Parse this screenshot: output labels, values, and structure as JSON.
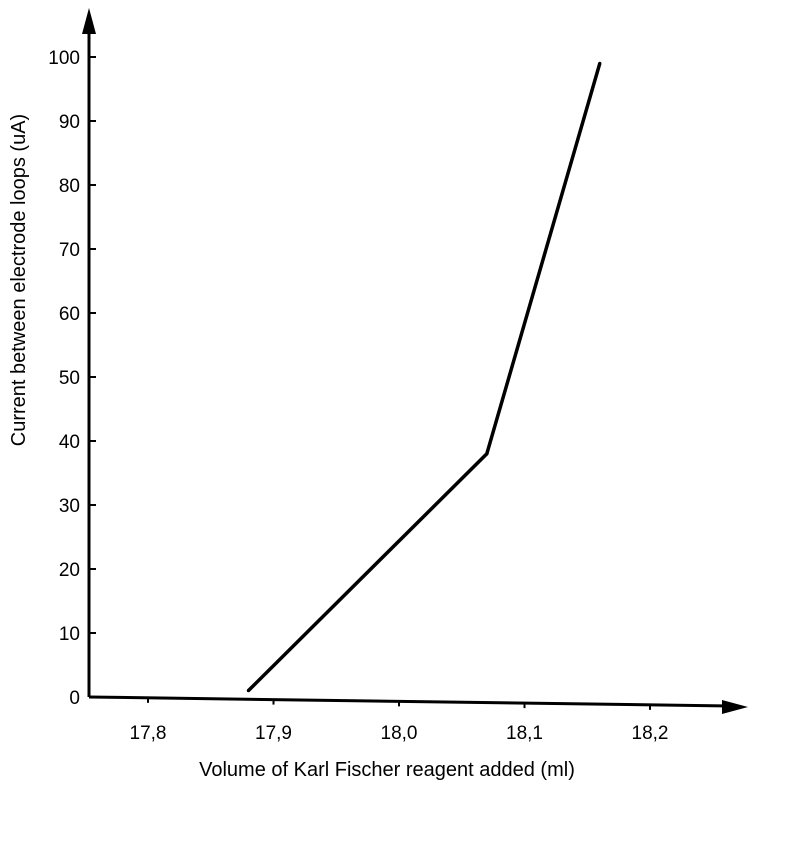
{
  "chart_data": {
    "type": "line",
    "title": "",
    "xlabel": "Volume of Karl Fischer reagent added  (ml)",
    "ylabel": "Current between electrode loops (uA)",
    "xlim": [
      17.76,
      18.29
    ],
    "ylim": [
      0,
      106
    ],
    "x_ticks": [
      17.8,
      17.9,
      18.0,
      18.1,
      18.2
    ],
    "x_tick_labels": [
      "17,8",
      "17,9",
      "18,0",
      "18,1",
      "18,2"
    ],
    "y_ticks": [
      0,
      10,
      20,
      30,
      40,
      50,
      60,
      70,
      80,
      90,
      100
    ],
    "y_tick_labels": [
      "0",
      "10",
      "20",
      "30",
      "40",
      "50",
      "60",
      "70",
      "80",
      "90",
      "100"
    ],
    "grid": false,
    "series": [
      {
        "x": [
          17.88,
          18.07,
          18.16
        ],
        "y": [
          1,
          38,
          99
        ]
      }
    ],
    "colors": {
      "line": "#000000",
      "axis": "#000000"
    }
  }
}
